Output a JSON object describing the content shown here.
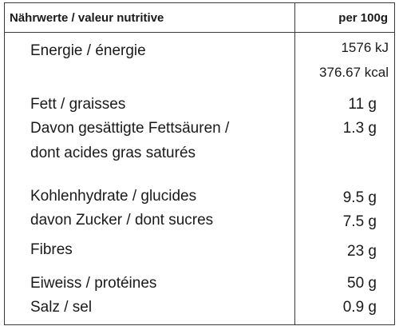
{
  "header": {
    "name": "Nährwerte / valeur nutritive",
    "unit": "per 100g"
  },
  "rows": {
    "energy": {
      "label": "Energie / énergie",
      "kj": "1576 kJ",
      "kcal": "376.67 kcal"
    },
    "fat": {
      "label": "Fett / graisses",
      "value": "11 g"
    },
    "saturated": {
      "label_line1": "Davon gesättigte Fettsäuren /",
      "label_line2": "dont acides gras saturés",
      "value": "1.3 g"
    },
    "carbs": {
      "label": "Kohlenhydrate / glucides",
      "value": "9.5 g"
    },
    "sugar": {
      "label": "davon Zucker / dont sucres",
      "value": "7.5 g"
    },
    "fibre": {
      "label": "Fibres",
      "value": "23 g"
    },
    "protein": {
      "label": "Eiweiss / protéines",
      "value": "50 g"
    },
    "salt": {
      "label": "Salz / sel",
      "value": "0.9 g"
    }
  }
}
